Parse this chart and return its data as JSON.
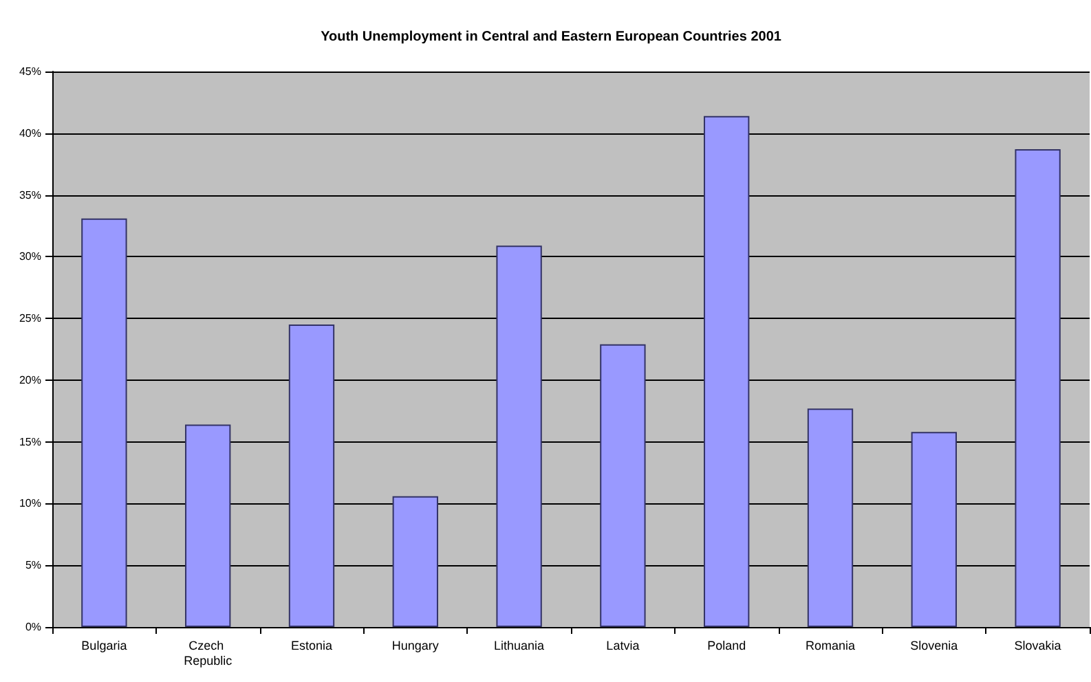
{
  "chart_data": {
    "type": "bar",
    "title": "Youth Unemployment in Central and Eastern European Countries 2001",
    "categories": [
      "Bulgaria",
      "Czech Republic",
      "Estonia",
      "Hungary",
      "Lithuania",
      "Latvia",
      "Poland",
      "Romania",
      "Slovenia",
      "Slovakia"
    ],
    "values": [
      33.1,
      16.4,
      24.5,
      10.6,
      30.9,
      22.9,
      41.4,
      17.7,
      15.8,
      38.7
    ],
    "color": "#9999ff",
    "ylim": [
      0,
      45
    ],
    "yticks": [
      {
        "value": 0,
        "label": "0%"
      },
      {
        "value": 5,
        "label": "5%"
      },
      {
        "value": 10,
        "label": "10%"
      },
      {
        "value": 15,
        "label": "15%"
      },
      {
        "value": 20,
        "label": "20%"
      },
      {
        "value": 25,
        "label": "25%"
      },
      {
        "value": 30,
        "label": "30%"
      },
      {
        "value": 35,
        "label": "35%"
      },
      {
        "value": 40,
        "label": "40%"
      },
      {
        "value": 45,
        "label": "45%"
      }
    ],
    "grid": "y"
  }
}
